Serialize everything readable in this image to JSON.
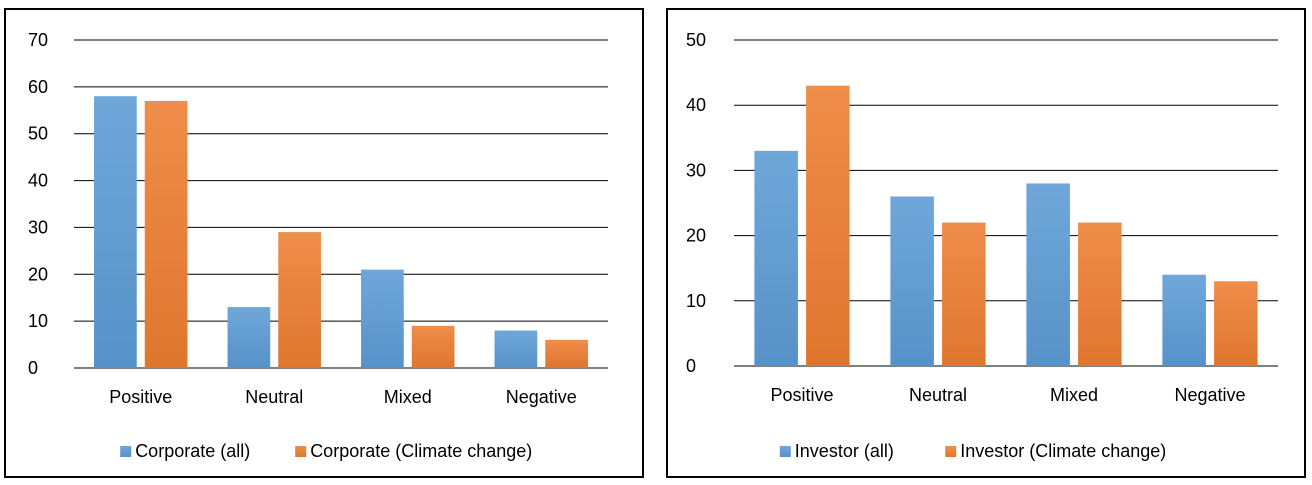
{
  "chart_data": [
    {
      "type": "bar",
      "categories": [
        "Positive",
        "Neutral",
        "Mixed",
        "Negative"
      ],
      "series": [
        {
          "name": "Corporate (all)",
          "values": [
            58,
            13,
            21,
            8
          ],
          "color": "#5B9BD5"
        },
        {
          "name": "Corporate (Climate change)",
          "values": [
            57,
            29,
            9,
            6
          ],
          "color": "#ED7D31"
        }
      ],
      "ylim": [
        0,
        70
      ],
      "yticks": [
        0,
        10,
        20,
        30,
        40,
        50,
        60,
        70
      ],
      "grid": true,
      "legend": "bottom"
    },
    {
      "type": "bar",
      "categories": [
        "Positive",
        "Neutral",
        "Mixed",
        "Negative"
      ],
      "series": [
        {
          "name": "Investor (all)",
          "values": [
            33,
            26,
            28,
            14
          ],
          "color": "#5B9BD5"
        },
        {
          "name": "Investor (Climate change)",
          "values": [
            43,
            22,
            22,
            13
          ],
          "color": "#ED7D31"
        }
      ],
      "ylim": [
        0,
        50
      ],
      "yticks": [
        0,
        10,
        20,
        30,
        40,
        50
      ],
      "grid": true,
      "legend": "bottom"
    }
  ]
}
